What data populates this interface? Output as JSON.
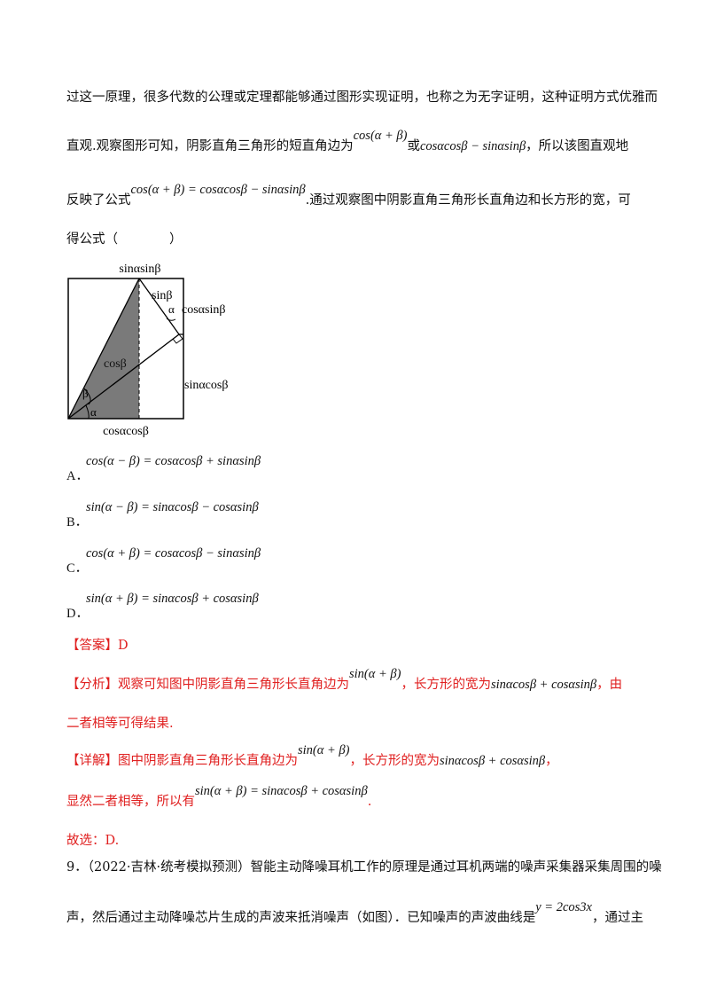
{
  "intro": {
    "l1": "过这一原理，很多代数的公理或定理都能够通过图形实现证明，也称之为无字证明，这种证明方式优雅而",
    "l2a": "直观.观察图形可知，阴影直角三角形的短直角边为",
    "l2f1": "cos(α + β)",
    "l2b": "或",
    "l2f2": "cosαcosβ − sinαsinβ",
    "l2c": "，所以该图直观地",
    "l3a": "反映了公式",
    "l3f": "cos(α + β) = cosαcosβ − sinαsinβ",
    "l3b": ".通过观察图中阴影直角三角形长直角边和长方形的宽，可",
    "l4": "得公式（　　　　）"
  },
  "figure": {
    "top": "sinαsinβ",
    "sinb": "sinβ",
    "alpha_top": "α",
    "cos_sin": "cosαsinβ",
    "cosb": "cosβ",
    "beta": "β",
    "alpha": "α",
    "sin_cos": "sinαcosβ",
    "bottom": "cosαcosβ"
  },
  "options": [
    {
      "letter": "A．",
      "formula": "cos(α − β) = cosαcosβ + sinαsinβ"
    },
    {
      "letter": "B．",
      "formula": "sin(α − β) = sinαcosβ − cosαsinβ"
    },
    {
      "letter": "C．",
      "formula": "cos(α + β) = cosαcosβ − sinαsinβ"
    },
    {
      "letter": "D．",
      "formula": "sin(α + β) = sinαcosβ + cosαsinβ"
    }
  ],
  "answer": "【答案】D",
  "analysis": {
    "a": "【分析】观察可知图中阴影直角三角形长直角边为",
    "f1": "sin(α + β)",
    "b": "，长方形的宽为",
    "f2": "sinαcosβ + cosαsinβ",
    "c": "，由",
    "l2": "二者相等可得结果."
  },
  "detail": {
    "a": "【详解】图中阴影直角三角形长直角边为",
    "f1": "sin(α + β)",
    "b": "，长方形的宽为",
    "f2": "sinαcosβ + cosαsinβ",
    "c": "，",
    "l2a": "显然二者相等，所以有",
    "l2f": "sin(α + β) = sinαcosβ + cosαsinβ",
    "l2b": ".",
    "l3": "故选：D."
  },
  "q9": {
    "l1": "9．（2022·吉林·统考模拟预测）智能主动降噪耳机工作的原理是通过耳机两端的噪声采集器采集周围的噪",
    "l2a": "声，然后通过主动降噪芯片生成的声波来抵消噪声（如图）．已知噪声的声波曲线是",
    "l2f": "y = 2cos3x",
    "l2b": "，通过主"
  }
}
